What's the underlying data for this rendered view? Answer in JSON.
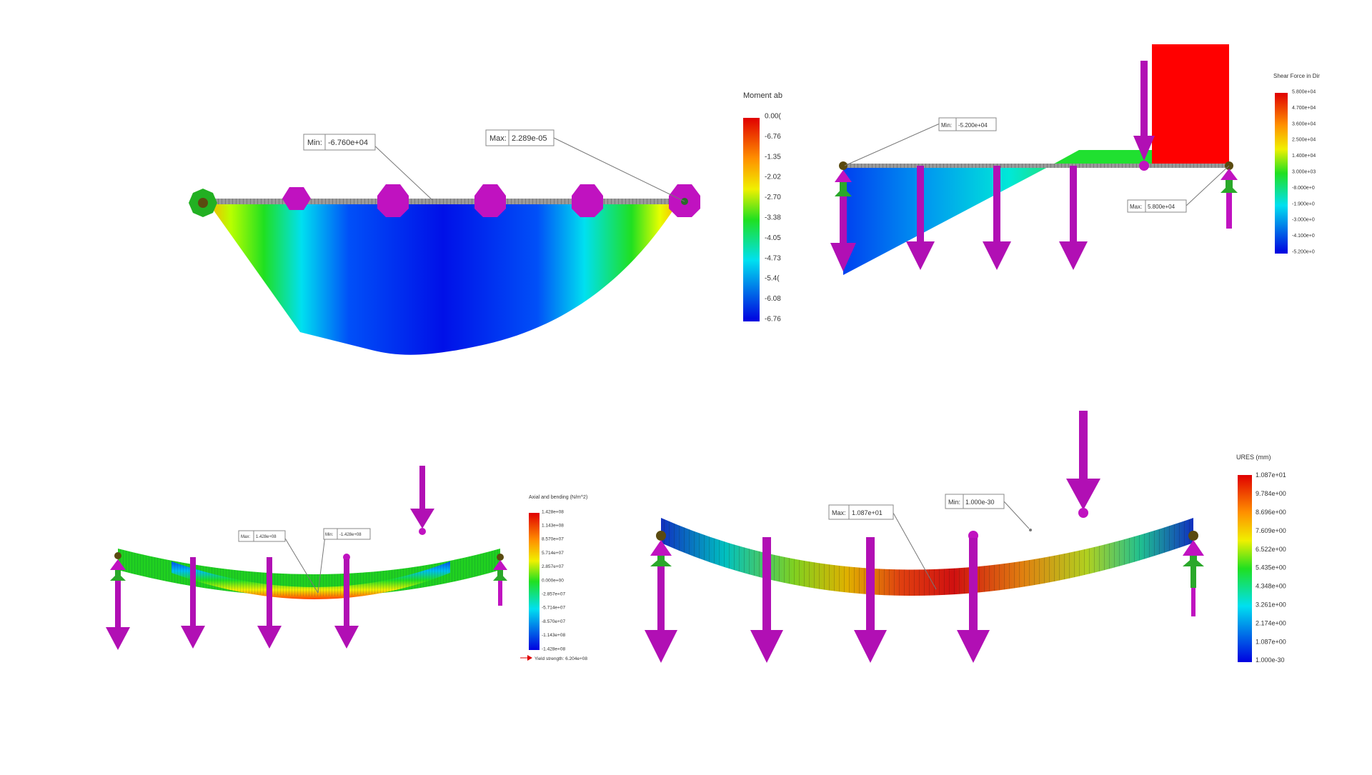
{
  "moment_plot": {
    "legend_title": "Moment ab",
    "min_label": "Min:",
    "min_value": "-6.760e+04",
    "max_label": "Max:",
    "max_value": "2.289e-05",
    "ticks": [
      "0.00(",
      "-6.76",
      "-1.35",
      "-2.02",
      "-2.70",
      "-3.38",
      "-4.05",
      "-4.73",
      "-5.4(",
      "-6.08",
      "-6.76"
    ]
  },
  "shear_plot": {
    "legend_title": "Shear Force in Dir",
    "min_label": "Min:",
    "min_value": "-5.200e+04",
    "max_label": "Max:",
    "max_value": "5.800e+04",
    "ticks": [
      "5.800e+04",
      "4.700e+04",
      "3.600e+04",
      "2.500e+04",
      "1.400e+04",
      "3.000e+03",
      "-8.000e+0",
      "-1.900e+0",
      "-3.000e+0",
      "-4.100e+0",
      "-5.200e+0"
    ]
  },
  "stress_plot": {
    "legend_title": "Axial and bending (N/m^2)",
    "min_label": "Min:",
    "min_value": "-1.428e+08",
    "max_label": "Max:",
    "max_value": "1.428e+08",
    "ticks": [
      "1.428e+08",
      "1.143e+08",
      "8.570e+07",
      "5.714e+07",
      "2.857e+07",
      "0.000e+00",
      "-2.857e+07",
      "-5.714e+07",
      "-8.570e+07",
      "-1.143e+08",
      "-1.428e+08"
    ],
    "yield_text": "Yield strength: 6.204e+08"
  },
  "ures_plot": {
    "legend_title": "URES (mm)",
    "min_label": "Min:",
    "min_value": "1.000e-30",
    "max_label": "Max:",
    "max_value": "1.087e+01",
    "ticks": [
      "1.087e+01",
      "9.784e+00",
      "8.696e+00",
      "7.609e+00",
      "6.522e+00",
      "5.435e+00",
      "4.348e+00",
      "3.261e+00",
      "2.174e+00",
      "1.087e+00",
      "1.000e-30"
    ]
  },
  "colors": {
    "load_arrow": "#b10fb4",
    "support_arrow": "#2aa82a",
    "scale_top": "#e00000",
    "scale_bottom": "#0000e0"
  }
}
